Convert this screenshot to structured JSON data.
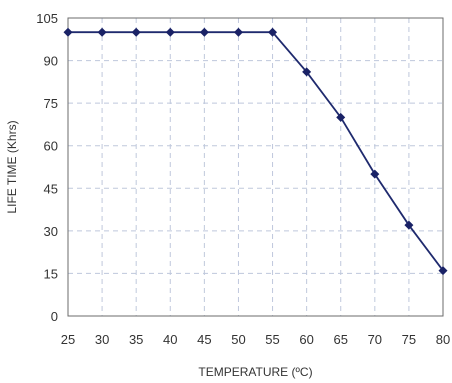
{
  "chart_data": {
    "type": "line",
    "x": [
      25,
      30,
      35,
      40,
      45,
      50,
      55,
      60,
      65,
      70,
      75,
      80
    ],
    "series": [
      {
        "values": [
          100,
          100,
          100,
          100,
          100,
          100,
          100,
          86,
          70,
          50,
          32,
          16
        ]
      }
    ],
    "xlabel": "TEMPERATURE (ºC)",
    "ylabel": "LIFE TIME (Khrs)",
    "xlim": [
      25,
      80
    ],
    "ylim": [
      0,
      105
    ],
    "xticks": [
      "25",
      "30",
      "35",
      "40",
      "45",
      "50",
      "55",
      "60",
      "65",
      "70",
      "75",
      "80"
    ],
    "yticks": [
      "0",
      "15",
      "30",
      "45",
      "60",
      "75",
      "90",
      "105"
    ],
    "grid": true,
    "legend": "none",
    "colors": {
      "line": "#1f2a6e",
      "marker": "#1a2266",
      "grid": "#bfc8dc",
      "frame": "#6b6b6b"
    }
  }
}
